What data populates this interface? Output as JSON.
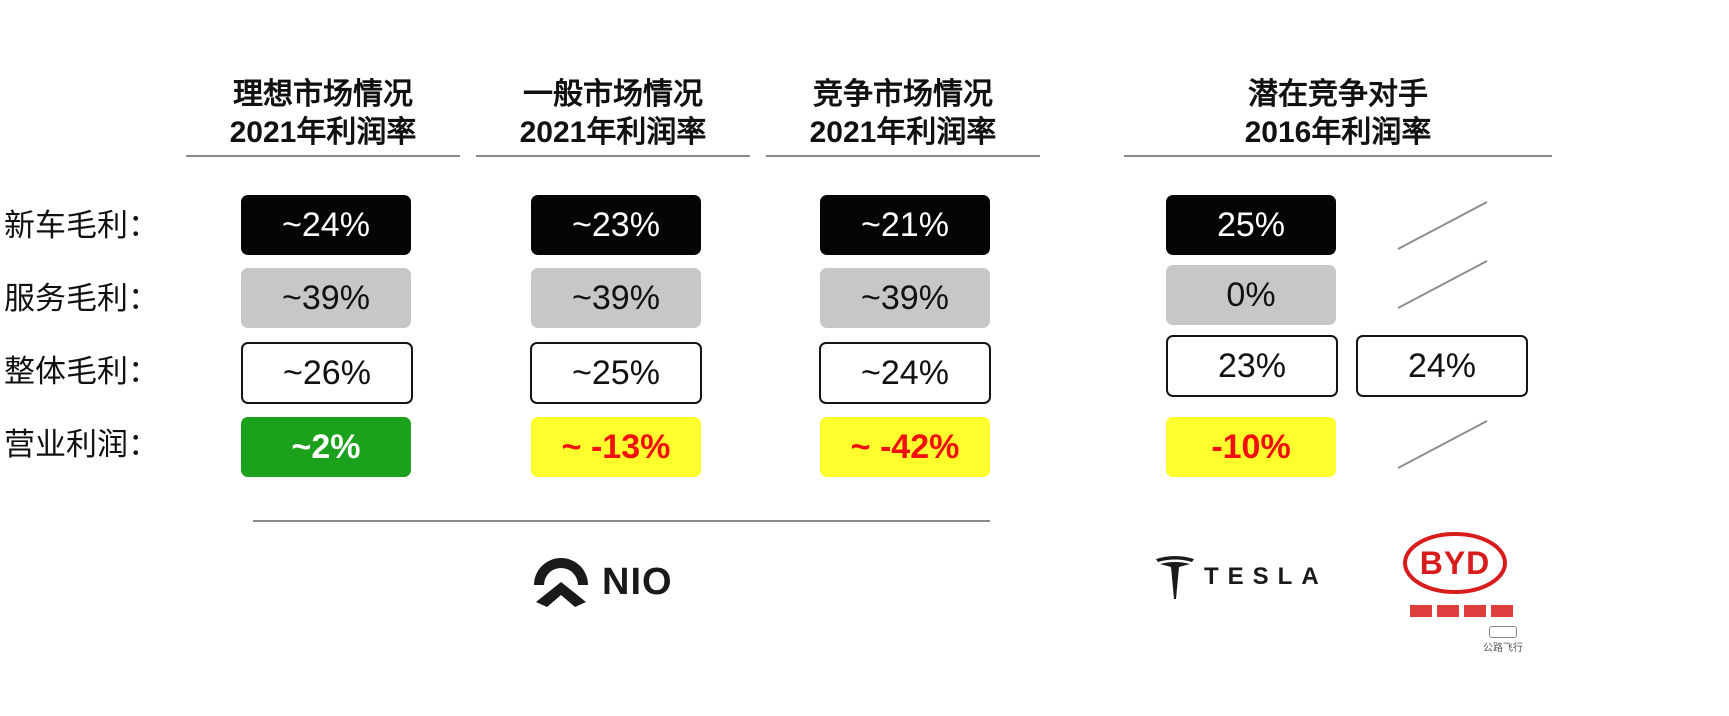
{
  "chart_data": {
    "type": "table",
    "columns": [
      {
        "title_line1": "理想市场情况",
        "title_line2": "2021年利润率"
      },
      {
        "title_line1": "一般市场情况",
        "title_line2": "2021年利润率"
      },
      {
        "title_line1": "竞争市场情况",
        "title_line2": "2021年利润率"
      },
      {
        "title_line1": "潜在竞争对手",
        "title_line2": "2016年利润率"
      }
    ],
    "rows": [
      {
        "label": "新车毛利：",
        "values": [
          "~24%",
          "~23%",
          "~21%",
          "25%"
        ],
        "byd": ""
      },
      {
        "label": "服务毛利：",
        "values": [
          "~39%",
          "~39%",
          "~39%",
          "0%"
        ],
        "byd": ""
      },
      {
        "label": "整体毛利：",
        "values": [
          "~26%",
          "~25%",
          "~24%",
          "23%"
        ],
        "byd": "24%"
      },
      {
        "label": "营业利润：",
        "values": [
          "~2%",
          "~ -13%",
          "~ -42%",
          "-10%"
        ],
        "byd": ""
      }
    ]
  },
  "colors": {
    "new_car_row": "#050505",
    "service_row": "#c7c7c7",
    "overall_row": "#ffffff",
    "operating_positive": "#1ba11b",
    "operating_negative_bg": "#ffff2e",
    "operating_negative_text": "#f01010"
  },
  "logos": {
    "nio": {
      "icon": "nio-logo-icon",
      "text": "NIO"
    },
    "tesla": {
      "icon": "tesla-t-icon",
      "text": "TESLA"
    },
    "byd": {
      "icon": "byd-oval-icon",
      "text": "BYD"
    }
  },
  "watermark": "公路飞行"
}
